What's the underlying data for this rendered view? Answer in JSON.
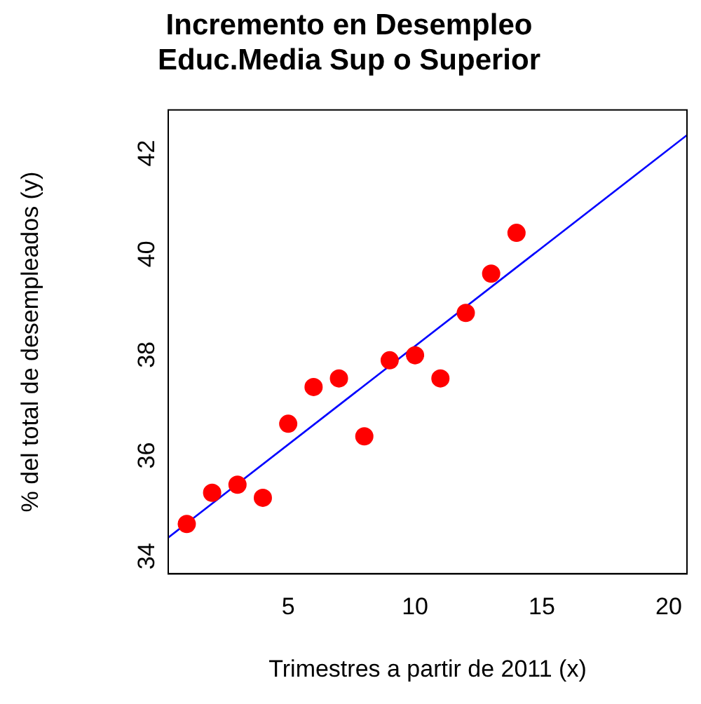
{
  "chart_data": {
    "type": "scatter",
    "title": "Incremento en Desempleo\nEduc.Media Sup o Superior",
    "xlabel": "Trimestres a partir de 2011 (x)",
    "ylabel": "% del total de desempleados (y)",
    "x": [
      1,
      2,
      3,
      4,
      5,
      6,
      7,
      8,
      9,
      10,
      11,
      12,
      13,
      14
    ],
    "series": [
      {
        "type": "scatter",
        "color": "#ff0000",
        "marker": "circle",
        "values": [
          34.64,
          35.26,
          35.42,
          35.16,
          36.63,
          37.36,
          37.53,
          36.38,
          37.89,
          37.99,
          37.53,
          38.83,
          39.61,
          40.42
        ]
      },
      {
        "type": "line",
        "color": "#0000ff",
        "marker": "none",
        "x": [
          0.27,
          20.72
        ],
        "values": [
          34.37,
          42.36
        ]
      }
    ],
    "xlim": [
      0.27,
      20.72
    ],
    "ylim": [
      33.65,
      42.86
    ],
    "xticks": [
      5,
      10,
      15,
      20
    ],
    "yticks": [
      34,
      36,
      38,
      40,
      42
    ],
    "grid": false,
    "legend": false
  }
}
